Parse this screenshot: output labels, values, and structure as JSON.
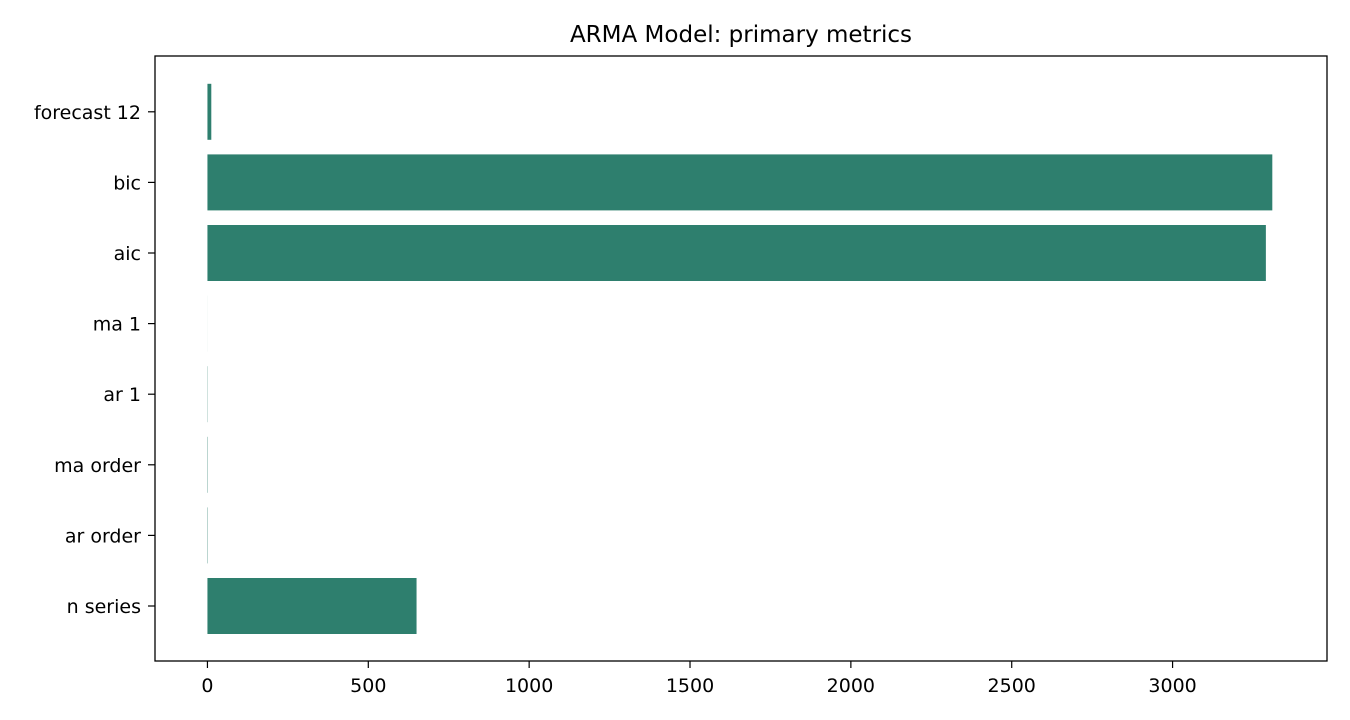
{
  "chart_data": {
    "type": "bar",
    "orientation": "horizontal",
    "title": "ARMA Model: primary metrics",
    "xlabel": "",
    "ylabel": "",
    "categories": [
      "n series",
      "ar order",
      "ma order",
      "ar 1",
      "ma 1",
      "aic",
      "bic",
      "forecast 12"
    ],
    "values": [
      650,
      1,
      1,
      0.7,
      0.1,
      3290,
      3310,
      12
    ],
    "xlim": [
      -163,
      3480
    ],
    "xticks": [
      0,
      500,
      1000,
      1500,
      2000,
      2500,
      3000
    ],
    "xtick_labels": [
      "0",
      "500",
      "1000",
      "1500",
      "2000",
      "2500",
      "3000"
    ],
    "grid": false,
    "bar_color": "#2e7f6e"
  }
}
